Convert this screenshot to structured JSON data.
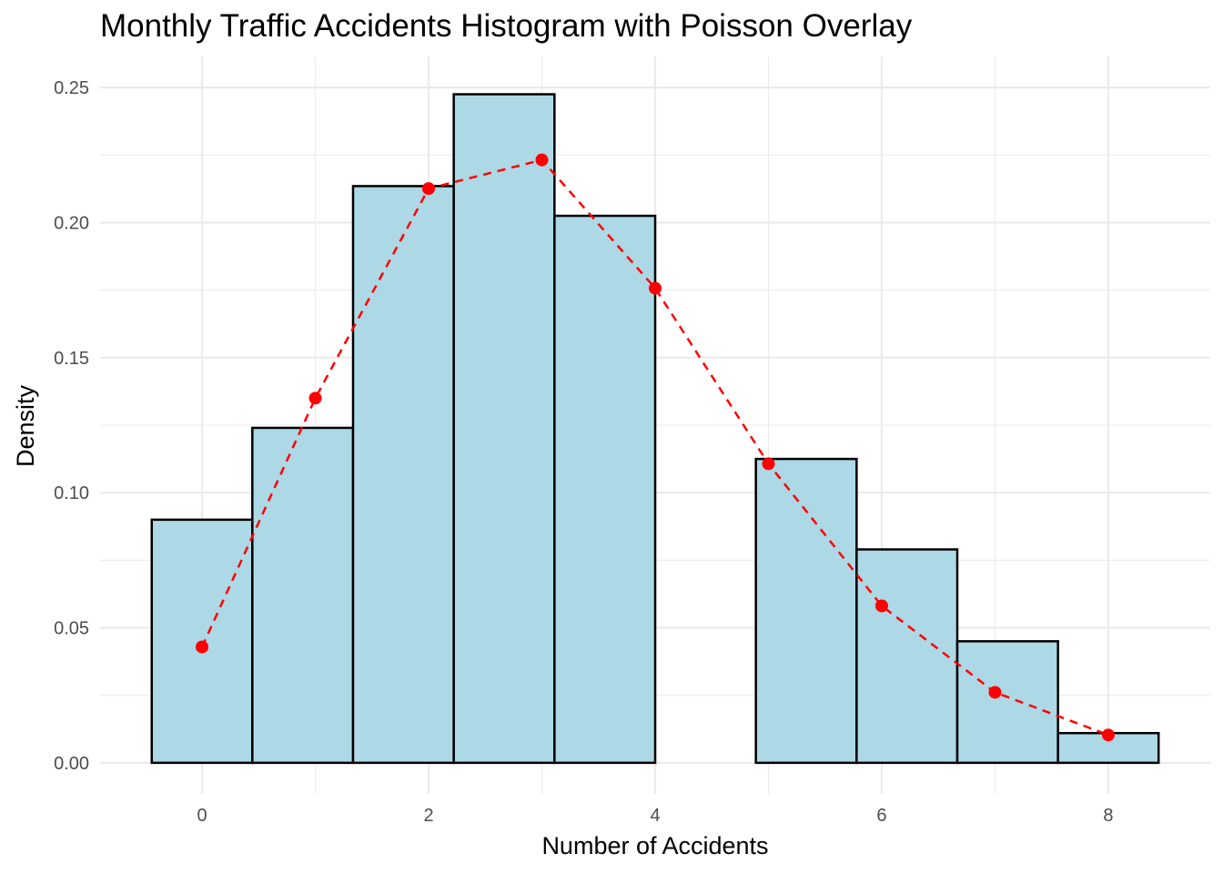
{
  "chart_data": {
    "type": "bar",
    "title": "Monthly Traffic Accidents Histogram with Poisson Overlay",
    "xlabel": "Number of Accidents",
    "ylabel": "Density",
    "xlim": [
      -0.9,
      8.9
    ],
    "ylim": [
      -0.0115,
      0.2615
    ],
    "x_ticks": [
      0,
      2,
      4,
      6,
      8
    ],
    "x_tick_labels": [
      "0",
      "2",
      "4",
      "6",
      "8"
    ],
    "y_ticks": [
      0,
      0.05,
      0.1,
      0.15,
      0.2,
      0.25
    ],
    "y_tick_labels": [
      "0.00",
      "0.05",
      "0.10",
      "0.15",
      "0.20",
      "0.25"
    ],
    "grid": true,
    "legend": "none",
    "bins": [
      {
        "x0": -0.444,
        "x1": 0.444,
        "density": 0.09
      },
      {
        "x0": 0.444,
        "x1": 1.333,
        "density": 0.124
      },
      {
        "x0": 1.333,
        "x1": 2.222,
        "density": 0.2135
      },
      {
        "x0": 2.222,
        "x1": 3.111,
        "density": 0.2475
      },
      {
        "x0": 3.111,
        "x1": 4.0,
        "density": 0.2025
      },
      {
        "x0": 4.0,
        "x1": 4.889,
        "density": 0.0
      },
      {
        "x0": 4.889,
        "x1": 5.778,
        "density": 0.1125
      },
      {
        "x0": 5.778,
        "x1": 6.667,
        "density": 0.079
      },
      {
        "x0": 6.667,
        "x1": 7.556,
        "density": 0.045
      },
      {
        "x0": 7.556,
        "x1": 8.444,
        "density": 0.011
      }
    ],
    "series": [
      {
        "type": "line+points",
        "style": "dashed",
        "x": [
          0,
          1,
          2,
          3,
          4,
          5,
          6,
          7,
          8
        ],
        "y": [
          0.0429,
          0.135,
          0.2126,
          0.2232,
          0.1757,
          0.1107,
          0.0581,
          0.0261,
          0.0103
        ]
      }
    ],
    "colors": {
      "bar_fill": "#add8e6",
      "bar_stroke": "#000000",
      "poisson": "#ff0000",
      "grid": "#ebebeb",
      "tick_text": "#4d4d4d"
    }
  }
}
